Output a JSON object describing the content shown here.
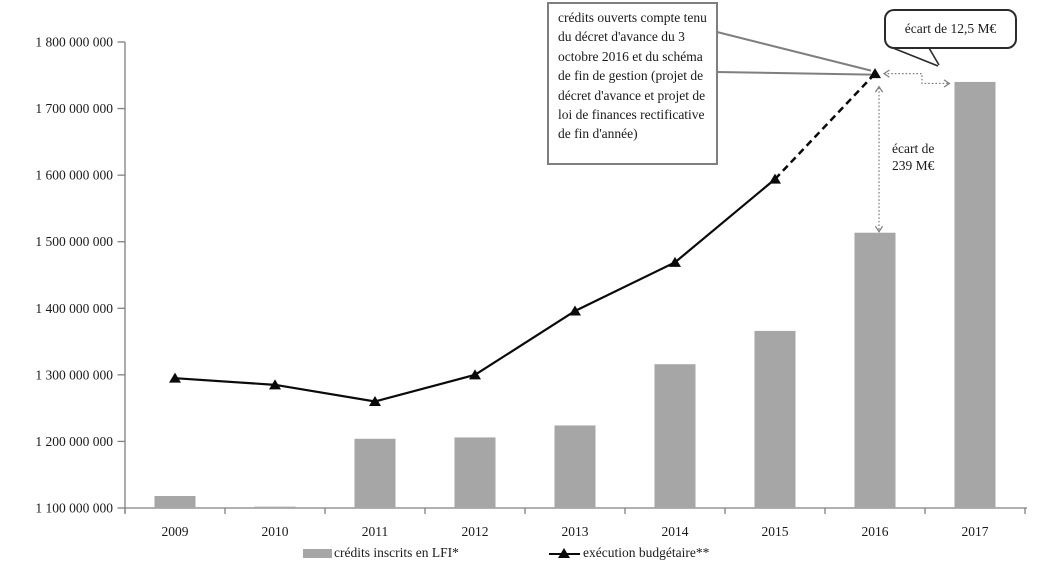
{
  "chart_data": {
    "type": "bar",
    "subtype": "bar-line-combo",
    "categories": [
      "2009",
      "2010",
      "2011",
      "2012",
      "2013",
      "2014",
      "2015",
      "2016",
      "2017"
    ],
    "series": [
      {
        "name": "crédits inscrits en LFI*",
        "type": "bar",
        "color": "#a6a6a6",
        "values": [
          1118000000,
          1102000000,
          1204000000,
          1206000000,
          1224000000,
          1316000000,
          1366000000,
          1513500000,
          1740000000
        ]
      },
      {
        "name": "exécution budgétaire**",
        "type": "line",
        "color": "#0a0a0a",
        "marker": "triangle",
        "dashed_segment_between": [
          "2015",
          "2016"
        ],
        "values": [
          1295000000,
          1285000000,
          1260000000,
          1300000000,
          1396000000,
          1469000000,
          1594000000,
          1752500000,
          null
        ]
      }
    ],
    "title": "",
    "xlabel": "",
    "ylabel": "",
    "ylim": [
      1100000000,
      1800000000
    ],
    "ytick_step": 100000000,
    "ytick_labels": [
      "1 800 000 000",
      "1 700 000 000",
      "1 600 000 000",
      "1 500 000 000",
      "1 400 000 000",
      "1 300 000 000",
      "1 200 000 000",
      "1 100 000 000"
    ],
    "grid": false,
    "legend_position": "bottom"
  },
  "annotations": {
    "callout_credits": {
      "text": "crédits ouverts compte tenu du décret d'avance du 3 octobre 2016 et du schéma de fin de gestion (projet de décret d'avance et projet de loi de finances rectificative de fin d'année)"
    },
    "callout_ecart_2017": {
      "text": "écart de 12,5  M€"
    },
    "gap_label_2016": {
      "line1": "écart de",
      "line2": "239 M€"
    }
  },
  "legend": {
    "bar_label": "crédits inscrits en LFI*",
    "line_label": "exécution budgétaire**"
  },
  "colors": {
    "bar": "#a6a6a6",
    "line": "#0a0a0a",
    "axis": "#808080",
    "callout_border_gray": "#7f7f7f",
    "callout_border_dark": "#2b2b2b",
    "dotted_arrow": "#7d7d7d",
    "text": "#1a1a1a"
  }
}
